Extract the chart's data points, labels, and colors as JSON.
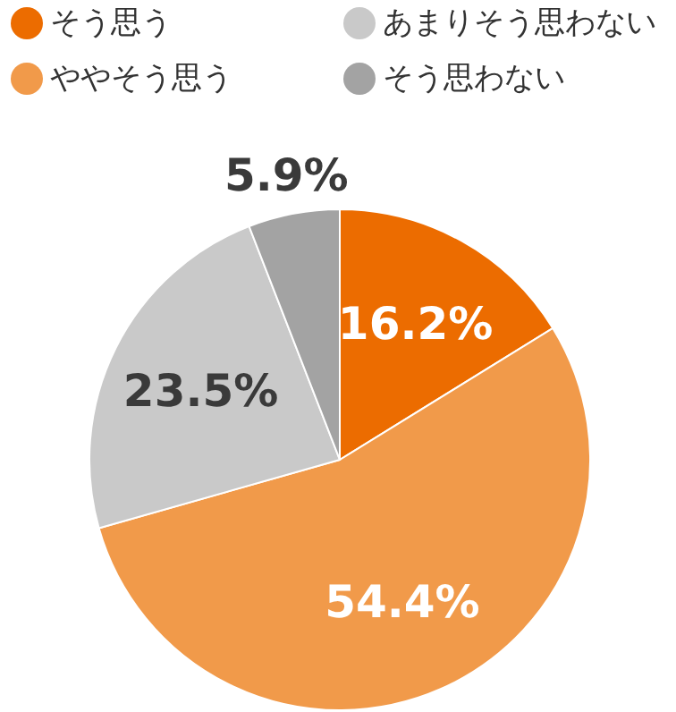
{
  "chart_data": {
    "type": "pie",
    "categories": [
      "そう思う",
      "ややそう思う",
      "あまりそう思わない",
      "そう思わない"
    ],
    "values": [
      16.2,
      54.4,
      23.5,
      5.9
    ],
    "colors": [
      "#ec6c00",
      "#f19a4a",
      "#c9c9c9",
      "#a3a3a3"
    ],
    "value_labels": [
      "16.2%",
      "54.4%",
      "23.5%",
      "5.9%"
    ],
    "legend": "top"
  }
}
